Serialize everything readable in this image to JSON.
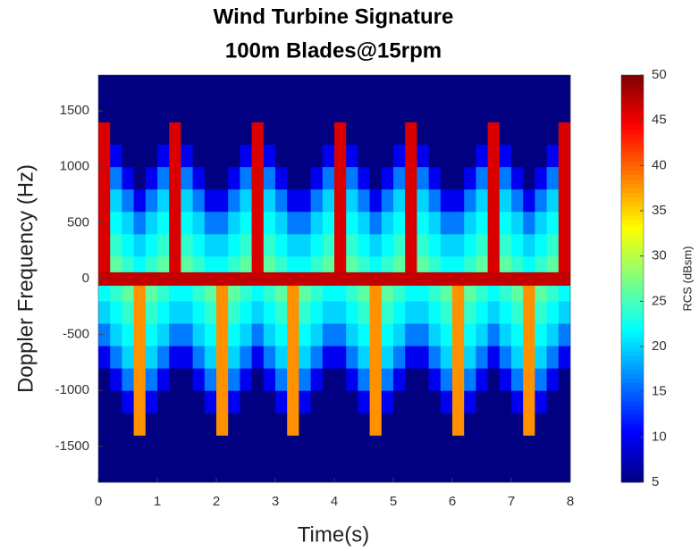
{
  "chart_data": {
    "type": "heatmap",
    "title": "Wind Turbine Signature",
    "subtitle": "100m Blades@15rpm",
    "xlabel": "Time(s)",
    "ylabel": "Doppler Frequency (Hz)",
    "xlim": [
      0,
      8
    ],
    "xticks": [
      0,
      1,
      2,
      3,
      4,
      5,
      6,
      7,
      8
    ],
    "ylim": [
      -1820,
      1820
    ],
    "yticks": [
      -1500,
      -1000,
      -500,
      0,
      500,
      1000,
      1500
    ],
    "x_edges": [
      0,
      0.2,
      0.4,
      0.6,
      0.8,
      1,
      1.2,
      1.4,
      1.6,
      1.8,
      2,
      2.2,
      2.4,
      2.6,
      2.8,
      3,
      3.2,
      3.4,
      3.6,
      3.8,
      4,
      4.2,
      4.4,
      4.6,
      4.8,
      5,
      5.2,
      5.4,
      5.6,
      5.8,
      6,
      6.2,
      6.4,
      6.6,
      6.8,
      7,
      7.2,
      7.4,
      7.6,
      7.8,
      8
    ],
    "y_edges": [
      -1820,
      -1400,
      -1200,
      -1000,
      -800,
      -600,
      -400,
      -200,
      -60,
      60,
      200,
      400,
      600,
      800,
      1000,
      1200,
      1400,
      1820
    ],
    "z": [
      [
        5,
        5,
        5,
        5,
        5,
        5,
        5,
        5,
        5,
        5,
        5,
        5,
        5,
        5,
        5,
        5,
        5,
        5,
        5,
        5,
        5,
        5,
        5,
        5,
        5,
        5,
        5,
        5,
        5,
        5,
        5,
        5,
        5,
        5,
        5,
        5,
        5,
        5,
        5,
        5
      ],
      [
        5,
        5,
        5,
        38,
        5,
        5,
        5,
        5,
        5,
        5,
        38,
        5,
        5,
        5,
        5,
        5,
        38,
        5,
        5,
        5,
        5,
        5,
        5,
        38,
        5,
        5,
        5,
        5,
        5,
        5,
        38,
        5,
        5,
        5,
        5,
        5,
        38,
        5,
        5,
        5
      ],
      [
        5,
        5,
        10,
        38,
        10,
        5,
        5,
        5,
        5,
        10,
        38,
        10,
        5,
        5,
        5,
        10,
        38,
        10,
        5,
        5,
        5,
        5,
        10,
        38,
        10,
        5,
        5,
        5,
        5,
        10,
        38,
        10,
        5,
        5,
        5,
        10,
        38,
        10,
        5,
        5
      ],
      [
        5,
        10,
        16,
        38,
        16,
        10,
        5,
        5,
        10,
        16,
        38,
        16,
        10,
        5,
        10,
        16,
        38,
        16,
        10,
        5,
        5,
        10,
        16,
        38,
        16,
        10,
        5,
        5,
        10,
        16,
        38,
        16,
        10,
        5,
        10,
        16,
        38,
        16,
        10,
        5
      ],
      [
        10,
        16,
        20,
        38,
        20,
        16,
        10,
        10,
        16,
        20,
        38,
        20,
        16,
        10,
        16,
        20,
        38,
        20,
        16,
        10,
        10,
        16,
        20,
        38,
        20,
        16,
        10,
        10,
        16,
        20,
        38,
        20,
        16,
        10,
        16,
        20,
        38,
        20,
        16,
        10
      ],
      [
        16,
        20,
        22,
        38,
        22,
        20,
        16,
        16,
        20,
        22,
        38,
        22,
        20,
        16,
        20,
        22,
        38,
        22,
        20,
        16,
        16,
        20,
        22,
        38,
        22,
        20,
        16,
        16,
        20,
        22,
        38,
        22,
        20,
        16,
        20,
        22,
        38,
        22,
        20,
        16
      ],
      [
        20,
        22,
        24,
        38,
        24,
        22,
        20,
        20,
        22,
        24,
        38,
        24,
        22,
        20,
        22,
        24,
        38,
        24,
        22,
        20,
        20,
        22,
        24,
        38,
        24,
        22,
        20,
        20,
        22,
        24,
        38,
        24,
        22,
        20,
        22,
        24,
        38,
        24,
        22,
        20
      ],
      [
        22,
        24,
        26,
        38,
        26,
        24,
        22,
        22,
        24,
        26,
        38,
        26,
        24,
        22,
        24,
        26,
        38,
        26,
        24,
        22,
        22,
        24,
        26,
        38,
        26,
        24,
        22,
        22,
        24,
        26,
        38,
        26,
        24,
        22,
        24,
        26,
        38,
        26,
        24,
        22
      ],
      [
        47,
        47,
        47,
        47,
        47,
        47,
        47,
        47,
        47,
        47,
        47,
        47,
        47,
        47,
        47,
        47,
        47,
        47,
        47,
        47,
        47,
        47,
        47,
        47,
        47,
        47,
        47,
        47,
        47,
        47,
        47,
        47,
        47,
        47,
        47,
        47,
        47,
        47,
        47,
        47
      ],
      [
        46,
        26,
        24,
        22,
        24,
        26,
        46,
        26,
        24,
        22,
        22,
        24,
        26,
        46,
        26,
        24,
        22,
        22,
        24,
        26,
        46,
        26,
        24,
        22,
        24,
        26,
        46,
        26,
        24,
        22,
        22,
        24,
        26,
        46,
        26,
        24,
        22,
        24,
        26,
        46
      ],
      [
        46,
        24,
        22,
        20,
        22,
        24,
        46,
        24,
        22,
        20,
        20,
        22,
        24,
        46,
        24,
        22,
        20,
        20,
        22,
        24,
        46,
        24,
        22,
        20,
        22,
        24,
        46,
        24,
        22,
        20,
        20,
        22,
        24,
        46,
        24,
        22,
        20,
        22,
        24,
        46
      ],
      [
        46,
        22,
        20,
        16,
        20,
        22,
        46,
        22,
        20,
        16,
        16,
        20,
        22,
        46,
        22,
        20,
        16,
        16,
        20,
        22,
        46,
        22,
        20,
        16,
        20,
        22,
        46,
        22,
        20,
        16,
        16,
        20,
        22,
        46,
        22,
        20,
        16,
        20,
        22,
        46
      ],
      [
        46,
        20,
        16,
        10,
        16,
        20,
        46,
        20,
        16,
        10,
        10,
        16,
        20,
        46,
        20,
        16,
        10,
        10,
        16,
        20,
        46,
        20,
        16,
        10,
        16,
        20,
        46,
        20,
        16,
        10,
        10,
        16,
        20,
        46,
        20,
        16,
        10,
        16,
        20,
        46
      ],
      [
        46,
        16,
        10,
        5,
        10,
        16,
        46,
        16,
        10,
        5,
        5,
        10,
        16,
        46,
        16,
        10,
        5,
        5,
        10,
        16,
        46,
        16,
        10,
        5,
        10,
        16,
        46,
        16,
        10,
        5,
        5,
        10,
        16,
        46,
        16,
        10,
        5,
        10,
        16,
        46
      ],
      [
        46,
        10,
        5,
        5,
        5,
        10,
        46,
        10,
        5,
        5,
        5,
        5,
        10,
        46,
        10,
        5,
        5,
        5,
        5,
        10,
        46,
        10,
        5,
        5,
        5,
        10,
        46,
        10,
        5,
        5,
        5,
        5,
        10,
        46,
        10,
        5,
        5,
        5,
        10,
        46
      ],
      [
        46,
        5,
        5,
        5,
        5,
        5,
        46,
        5,
        5,
        5,
        5,
        5,
        5,
        46,
        5,
        5,
        5,
        5,
        5,
        5,
        46,
        5,
        5,
        5,
        5,
        5,
        46,
        5,
        5,
        5,
        5,
        5,
        5,
        46,
        5,
        5,
        5,
        5,
        5,
        46
      ],
      [
        5,
        5,
        5,
        5,
        5,
        5,
        5,
        5,
        5,
        5,
        5,
        5,
        5,
        5,
        5,
        5,
        5,
        5,
        5,
        5,
        5,
        5,
        5,
        5,
        5,
        5,
        5,
        5,
        5,
        5,
        5,
        5,
        5,
        5,
        5,
        5,
        5,
        5,
        5,
        5
      ]
    ],
    "colormap": "jet",
    "colorbar": {
      "label": "RCS (dBsm)",
      "clim": [
        5,
        50
      ],
      "ticks": [
        5,
        10,
        15,
        20,
        25,
        30,
        35,
        40,
        45,
        50
      ]
    }
  }
}
